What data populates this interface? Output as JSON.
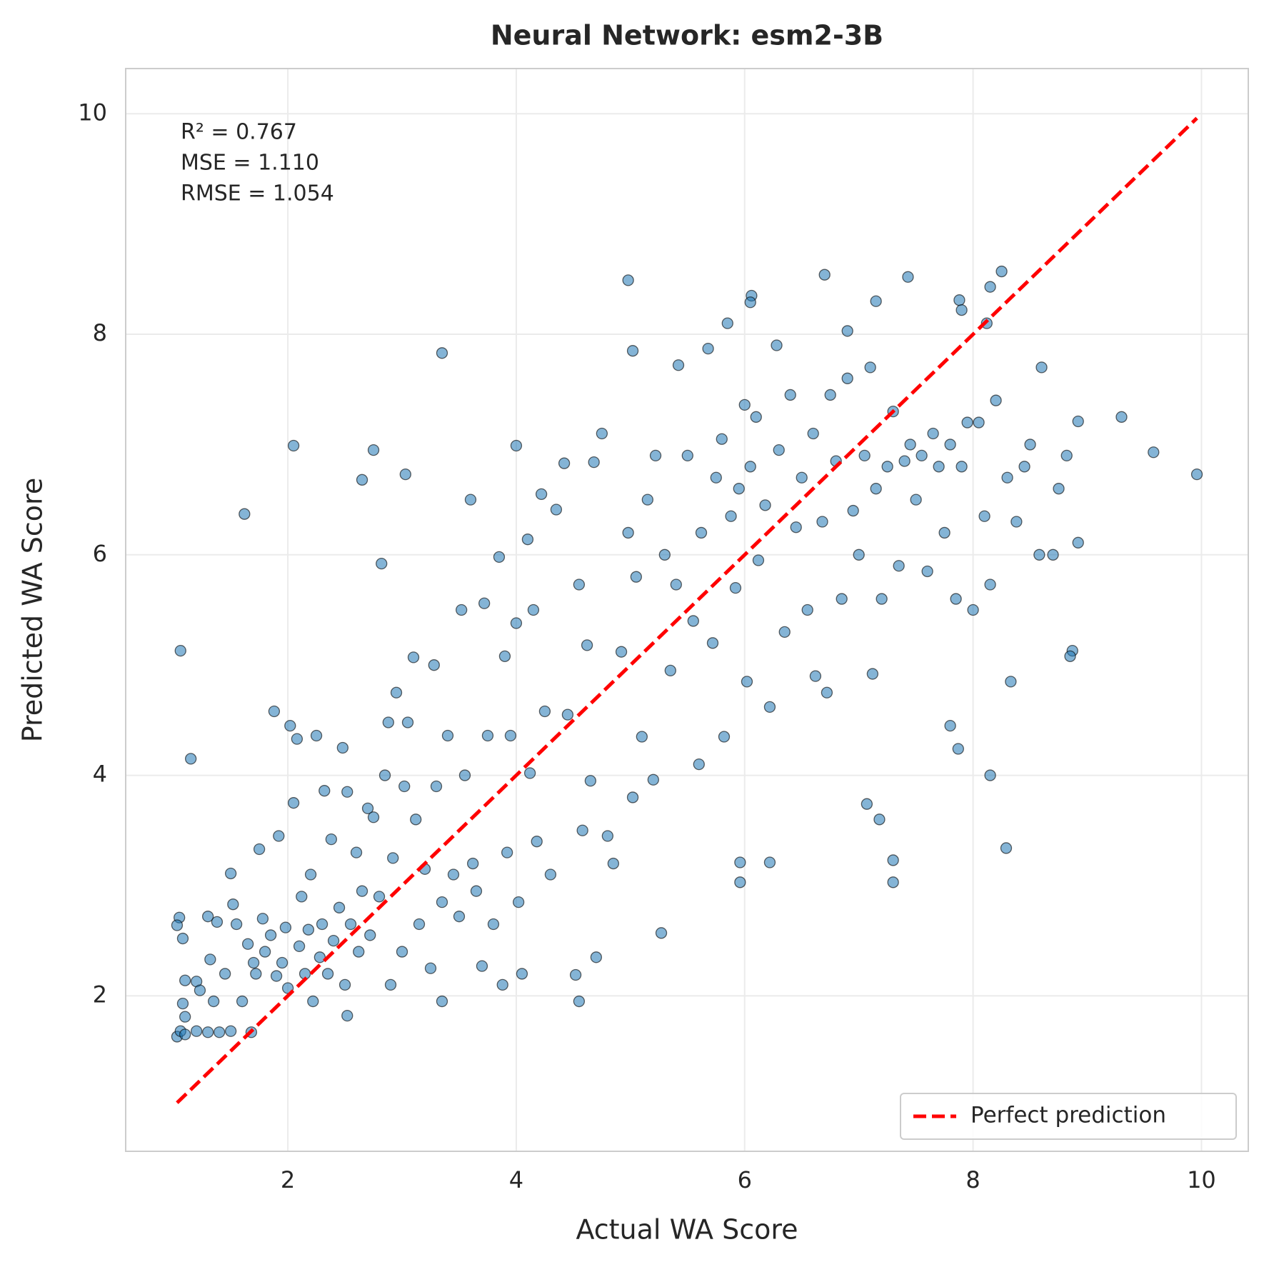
{
  "chart_data": {
    "type": "scatter",
    "title": "Neural Network: esm2-3B",
    "x_label": "Actual WA Score",
    "y_label": "Predicted WA Score",
    "annotation": [
      "R² = 0.767",
      "MSE = 1.110",
      "RMSE = 1.054"
    ],
    "color": "#1f77b4",
    "grid": true,
    "legend": "lower right",
    "xlim": [
      0.58,
      10.41
    ],
    "ylim": [
      0.59,
      10.41
    ],
    "xticks": [
      2,
      4,
      6,
      8,
      10
    ],
    "yticks": [
      2,
      4,
      6,
      8,
      10
    ],
    "x": [
      1.03,
      1.06,
      1.1,
      1.2,
      1.3,
      1.4,
      1.5,
      1.68,
      1.05,
      1.03,
      1.08,
      1.1,
      1.08,
      1.1,
      1.2,
      1.23,
      1.3,
      1.32,
      1.38,
      1.35,
      1.45,
      1.5,
      1.52,
      1.55,
      1.6,
      1.65,
      1.7,
      1.72,
      1.75,
      1.78,
      1.8,
      1.85,
      1.88,
      1.9,
      1.92,
      1.95,
      1.98,
      2.0,
      2.02,
      2.05,
      2.08,
      2.1,
      2.12,
      2.15,
      2.18,
      2.2,
      2.22,
      2.25,
      2.28,
      2.3,
      2.32,
      2.35,
      2.38,
      2.4,
      2.45,
      2.48,
      2.5,
      2.52,
      2.55,
      2.6,
      2.62,
      2.65,
      2.7,
      2.72,
      2.75,
      2.8,
      2.85,
      2.88,
      2.9,
      2.92,
      2.95,
      3.0,
      3.02,
      3.05,
      3.1,
      3.12,
      3.15,
      3.2,
      3.25,
      3.28,
      3.3,
      3.35,
      3.4,
      3.45,
      3.5,
      3.52,
      3.55,
      3.6,
      3.62,
      3.65,
      3.7,
      3.72,
      3.75,
      3.8,
      3.85,
      3.88,
      3.9,
      3.92,
      3.95,
      4.0,
      4.0,
      4.02,
      4.05,
      4.1,
      4.12,
      4.15,
      4.18,
      4.22,
      4.25,
      4.3,
      4.35,
      4.42,
      4.45,
      4.55,
      4.58,
      4.62,
      4.65,
      4.68,
      4.7,
      4.75,
      4.8,
      4.85,
      4.92,
      4.98,
      5.02,
      5.05,
      5.1,
      5.15,
      5.2,
      5.22,
      5.3,
      5.35,
      5.4,
      5.42,
      5.5,
      5.55,
      5.6,
      5.62,
      5.68,
      5.72,
      5.75,
      5.8,
      5.82,
      5.88,
      5.92,
      5.95,
      6.0,
      6.02,
      6.05,
      6.1,
      6.12,
      6.18,
      6.22,
      6.28,
      6.3,
      6.35,
      6.4,
      6.45,
      6.5,
      6.55,
      6.6,
      6.62,
      6.68,
      6.72,
      6.75,
      6.8,
      6.85,
      6.9,
      6.95,
      7.0,
      7.05,
      7.1,
      7.12,
      7.15,
      7.2,
      7.25,
      7.3,
      7.35,
      7.4,
      7.45,
      7.5,
      7.55,
      7.6,
      7.65,
      7.7,
      7.75,
      7.8,
      7.85,
      7.9,
      7.95,
      8.0,
      8.05,
      8.1,
      8.15,
      8.2,
      8.3,
      8.38,
      8.45,
      8.5,
      8.58,
      8.6,
      8.7,
      8.75,
      8.82,
      1.06,
      1.15,
      1.62,
      2.05,
      2.75,
      2.65,
      3.03,
      2.82,
      3.35,
      4.98,
      5.02,
      6.06,
      6.05,
      6.7,
      7.43,
      8.25,
      8.15,
      7.15,
      7.88,
      7.9,
      5.85,
      6.9,
      8.12,
      9.3,
      9.58,
      9.96,
      8.92,
      8.92,
      8.87,
      8.85,
      8.33,
      8.29,
      8.15,
      7.87,
      7.8,
      7.07,
      7.18,
      7.3,
      7.3,
      5.96,
      5.96,
      6.22,
      5.27,
      4.55,
      4.52,
      3.35,
      2.52
    ],
    "values": [
      1.63,
      1.68,
      1.65,
      1.68,
      1.67,
      1.67,
      1.68,
      1.67,
      2.71,
      2.64,
      2.52,
      2.14,
      1.93,
      1.81,
      2.13,
      2.05,
      2.72,
      2.33,
      2.67,
      1.95,
      2.2,
      3.11,
      2.83,
      2.65,
      1.95,
      2.47,
      2.3,
      2.2,
      3.33,
      2.7,
      2.4,
      2.55,
      4.58,
      2.18,
      3.45,
      2.3,
      2.62,
      2.07,
      4.45,
      3.75,
      4.33,
      2.45,
      2.9,
      2.2,
      2.6,
      3.1,
      1.95,
      4.36,
      2.35,
      2.65,
      3.86,
      2.2,
      3.42,
      2.5,
      2.8,
      4.25,
      2.1,
      3.85,
      2.65,
      3.3,
      2.4,
      2.95,
      3.7,
      2.55,
      3.62,
      2.9,
      4.0,
      4.48,
      2.1,
      3.25,
      4.75,
      2.4,
      3.9,
      4.48,
      5.07,
      3.6,
      2.65,
      3.15,
      2.25,
      5.0,
      3.9,
      2.85,
      4.36,
      3.1,
      2.72,
      5.5,
      4.0,
      6.5,
      3.2,
      2.95,
      2.27,
      5.56,
      4.36,
      2.65,
      5.98,
      2.1,
      5.08,
      3.3,
      4.36,
      6.99,
      5.38,
      2.85,
      2.2,
      6.14,
      4.02,
      5.5,
      3.4,
      6.55,
      4.58,
      3.1,
      6.41,
      6.83,
      4.55,
      5.73,
      3.5,
      5.18,
      3.95,
      6.84,
      2.35,
      7.1,
      3.45,
      3.2,
      5.12,
      6.2,
      3.8,
      5.8,
      4.35,
      6.5,
      3.96,
      6.9,
      6.0,
      4.95,
      5.73,
      7.72,
      6.9,
      5.4,
      4.1,
      6.2,
      7.87,
      5.2,
      6.7,
      7.05,
      4.35,
      6.35,
      5.7,
      6.6,
      7.36,
      4.85,
      6.8,
      7.25,
      5.95,
      6.45,
      4.62,
      7.9,
      6.95,
      5.3,
      7.45,
      6.25,
      6.7,
      5.5,
      7.1,
      4.9,
      6.3,
      4.75,
      7.45,
      6.85,
      5.6,
      7.6,
      6.4,
      6.0,
      6.9,
      7.7,
      4.92,
      6.6,
      5.6,
      6.8,
      7.3,
      5.9,
      6.85,
      7.0,
      6.5,
      6.9,
      5.85,
      7.1,
      6.8,
      6.2,
      7.0,
      5.6,
      6.8,
      7.2,
      5.5,
      7.2,
      6.35,
      5.73,
      7.4,
      6.7,
      6.3,
      6.8,
      7.0,
      6.0,
      7.7,
      6.0,
      6.6,
      6.9,
      5.13,
      4.15,
      6.37,
      6.99,
      6.95,
      6.68,
      6.73,
      5.92,
      7.83,
      8.49,
      7.85,
      8.35,
      8.29,
      8.54,
      8.52,
      8.57,
      8.43,
      8.3,
      8.31,
      8.22,
      8.1,
      8.03,
      8.1,
      7.25,
      6.93,
      6.73,
      7.21,
      6.11,
      5.13,
      5.08,
      4.85,
      3.34,
      4.0,
      4.24,
      4.45,
      3.74,
      3.6,
      3.23,
      3.03,
      3.21,
      3.03,
      3.21,
      2.57,
      1.95,
      2.19,
      1.95,
      1.82
    ],
    "reference_line": {
      "name": "Perfect prediction",
      "color": "#ff0000",
      "x": [
        1.03,
        9.96
      ],
      "y": [
        1.03,
        9.96
      ]
    }
  }
}
